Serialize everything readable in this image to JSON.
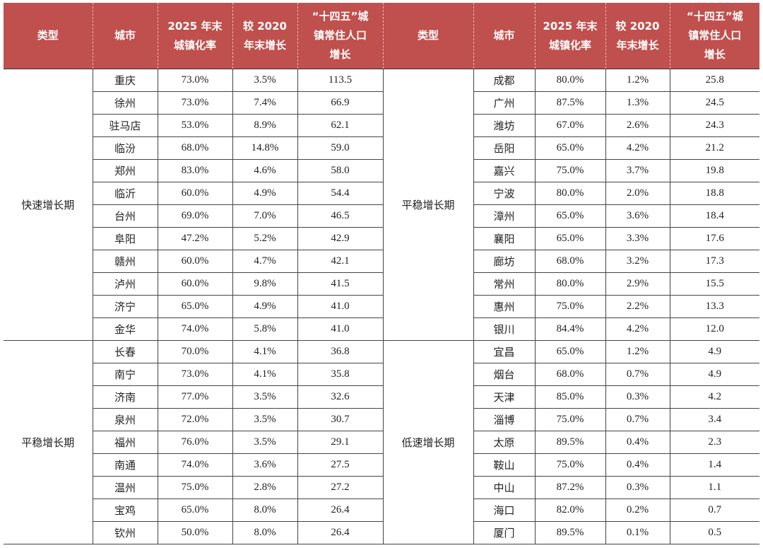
{
  "tables": [
    {
      "columns": [
        "类型",
        "城市",
        "2025 年末\n城镇化率",
        "较 2020\n年末增长",
        "“十四五”城\n镇常住人口\n增长"
      ],
      "groups": [
        {
          "type": "快速增长期",
          "rows": [
            [
              "重庆",
              "73.0%",
              "3.5%",
              "113.5"
            ],
            [
              "徐州",
              "73.0%",
              "7.4%",
              "66.9"
            ],
            [
              "驻马店",
              "53.0%",
              "8.9%",
              "62.1"
            ],
            [
              "临汾",
              "68.0%",
              "14.8%",
              "59.0"
            ],
            [
              "郑州",
              "83.0%",
              "4.6%",
              "58.0"
            ],
            [
              "临沂",
              "60.0%",
              "4.9%",
              "54.4"
            ],
            [
              "台州",
              "69.0%",
              "7.0%",
              "46.5"
            ],
            [
              "阜阳",
              "47.2%",
              "5.2%",
              "42.9"
            ],
            [
              "赣州",
              "60.0%",
              "4.7%",
              "42.1"
            ],
            [
              "泸州",
              "60.0%",
              "9.8%",
              "41.5"
            ],
            [
              "济宁",
              "65.0%",
              "4.9%",
              "41.0"
            ],
            [
              "金华",
              "74.0%",
              "5.8%",
              "41.0"
            ]
          ]
        },
        {
          "type": "平稳增长期",
          "rows": [
            [
              "长春",
              "70.0%",
              "4.1%",
              "36.8"
            ],
            [
              "南宁",
              "73.0%",
              "4.1%",
              "35.8"
            ],
            [
              "济南",
              "77.0%",
              "3.5%",
              "32.6"
            ],
            [
              "泉州",
              "72.0%",
              "3.5%",
              "30.7"
            ],
            [
              "福州",
              "76.0%",
              "3.5%",
              "29.1"
            ],
            [
              "南通",
              "74.0%",
              "3.6%",
              "27.5"
            ],
            [
              "温州",
              "75.0%",
              "2.8%",
              "27.2"
            ],
            [
              "宝鸡",
              "65.0%",
              "8.0%",
              "26.4"
            ],
            [
              "钦州",
              "50.0%",
              "8.0%",
              "26.4"
            ]
          ]
        }
      ]
    },
    {
      "columns": [
        "类型",
        "城市",
        "2025 年末\n城镇化率",
        "较 2020\n年末增长",
        "“十四五”城\n镇常住人口\n增长"
      ],
      "groups": [
        {
          "type": "平稳增长期",
          "rows": [
            [
              "成都",
              "80.0%",
              "1.2%",
              "25.8"
            ],
            [
              "广州",
              "87.5%",
              "1.3%",
              "24.5"
            ],
            [
              "潍坊",
              "67.0%",
              "2.6%",
              "24.3"
            ],
            [
              "岳阳",
              "65.0%",
              "4.2%",
              "21.2"
            ],
            [
              "嘉兴",
              "75.0%",
              "3.7%",
              "19.8"
            ],
            [
              "宁波",
              "80.0%",
              "2.0%",
              "18.8"
            ],
            [
              "漳州",
              "65.0%",
              "3.6%",
              "18.4"
            ],
            [
              "襄阳",
              "65.0%",
              "3.3%",
              "17.6"
            ],
            [
              "廊坊",
              "68.0%",
              "3.2%",
              "17.3"
            ],
            [
              "常州",
              "80.0%",
              "2.9%",
              "15.5"
            ],
            [
              "惠州",
              "75.0%",
              "2.2%",
              "13.3"
            ],
            [
              "银川",
              "84.4%",
              "4.2%",
              "12.0"
            ]
          ]
        },
        {
          "type": "低速增长期",
          "rows": [
            [
              "宜昌",
              "65.0%",
              "1.2%",
              "4.9"
            ],
            [
              "烟台",
              "68.0%",
              "0.7%",
              "4.9"
            ],
            [
              "天津",
              "85.0%",
              "0.3%",
              "4.2"
            ],
            [
              "淄博",
              "75.0%",
              "0.7%",
              "3.4"
            ],
            [
              "太原",
              "89.5%",
              "0.4%",
              "2.3"
            ],
            [
              "鞍山",
              "75.0%",
              "0.4%",
              "1.4"
            ],
            [
              "中山",
              "87.2%",
              "0.3%",
              "1.1"
            ],
            [
              "海口",
              "82.0%",
              "0.2%",
              "0.7"
            ],
            [
              "厦门",
              "89.5%",
              "0.1%",
              "0.5"
            ]
          ]
        }
      ]
    }
  ]
}
